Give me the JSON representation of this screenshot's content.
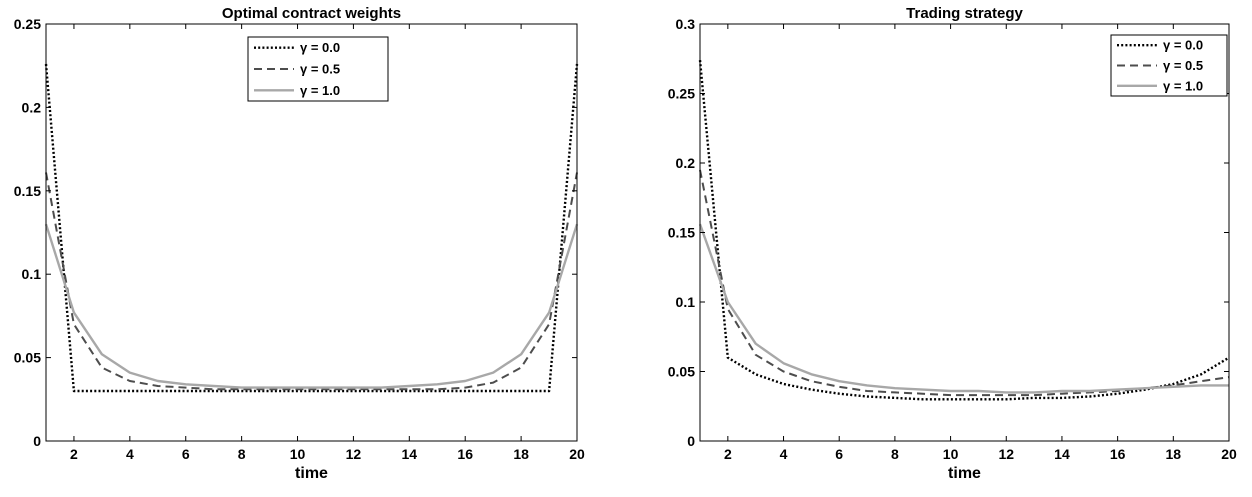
{
  "chart_data": [
    {
      "type": "line",
      "title": "Optimal contract weights",
      "xlabel": "time",
      "ylabel": "",
      "xlim": [
        1,
        20
      ],
      "ylim": [
        0,
        0.25
      ],
      "xticks": [
        2,
        4,
        6,
        8,
        10,
        12,
        14,
        16,
        18,
        20
      ],
      "yticks": [
        0,
        0.05,
        0.1,
        0.15,
        0.2,
        0.25
      ],
      "xtick_labels": [
        "2",
        "4",
        "6",
        "8",
        "10",
        "12",
        "14",
        "16",
        "18",
        "20"
      ],
      "ytick_labels": [
        "0",
        "0.05",
        "0.1",
        "0.15",
        "0.2",
        "0.25"
      ],
      "legend_position": "top-center",
      "grid": false,
      "x": [
        1,
        2,
        3,
        4,
        5,
        6,
        7,
        8,
        9,
        10,
        11,
        12,
        13,
        14,
        15,
        16,
        17,
        18,
        19,
        20
      ],
      "series": [
        {
          "name": "γ = 0.0",
          "style": "dotted",
          "color": "#000000",
          "values": [
            0.226,
            0.03,
            0.03,
            0.03,
            0.03,
            0.03,
            0.03,
            0.03,
            0.03,
            0.03,
            0.03,
            0.03,
            0.03,
            0.03,
            0.03,
            0.03,
            0.03,
            0.03,
            0.03,
            0.226
          ]
        },
        {
          "name": "γ = 0.5",
          "style": "dashed",
          "color": "#4d4d4d",
          "values": [
            0.161,
            0.07,
            0.044,
            0.036,
            0.033,
            0.032,
            0.031,
            0.031,
            0.031,
            0.031,
            0.031,
            0.031,
            0.031,
            0.031,
            0.031,
            0.032,
            0.035,
            0.044,
            0.07,
            0.161
          ]
        },
        {
          "name": "γ = 1.0",
          "style": "solid",
          "color": "#a8a8a8",
          "values": [
            0.13,
            0.077,
            0.052,
            0.041,
            0.036,
            0.034,
            0.033,
            0.032,
            0.032,
            0.032,
            0.032,
            0.032,
            0.032,
            0.033,
            0.034,
            0.036,
            0.041,
            0.052,
            0.077,
            0.13
          ]
        }
      ]
    },
    {
      "type": "line",
      "title": "Trading strategy",
      "xlabel": "time",
      "ylabel": "",
      "xlim": [
        1,
        20
      ],
      "ylim": [
        0,
        0.3
      ],
      "xticks": [
        2,
        4,
        6,
        8,
        10,
        12,
        14,
        16,
        18,
        20
      ],
      "yticks": [
        0,
        0.05,
        0.1,
        0.15,
        0.2,
        0.25,
        0.3
      ],
      "xtick_labels": [
        "2",
        "4",
        "6",
        "8",
        "10",
        "12",
        "14",
        "16",
        "18",
        "20"
      ],
      "ytick_labels": [
        "0",
        "0.05",
        "0.1",
        "0.15",
        "0.2",
        "0.25",
        "0.3"
      ],
      "legend_position": "top-right",
      "grid": false,
      "x": [
        1,
        2,
        3,
        4,
        5,
        6,
        7,
        8,
        9,
        10,
        11,
        12,
        13,
        14,
        15,
        16,
        17,
        18,
        19,
        20
      ],
      "series": [
        {
          "name": "γ = 0.0",
          "style": "dotted",
          "color": "#000000",
          "values": [
            0.274,
            0.06,
            0.048,
            0.041,
            0.037,
            0.034,
            0.032,
            0.031,
            0.03,
            0.03,
            0.03,
            0.03,
            0.031,
            0.031,
            0.032,
            0.034,
            0.037,
            0.041,
            0.048,
            0.06
          ]
        },
        {
          "name": "γ = 0.5",
          "style": "dashed",
          "color": "#4d4d4d",
          "values": [
            0.195,
            0.095,
            0.062,
            0.05,
            0.043,
            0.039,
            0.036,
            0.035,
            0.034,
            0.033,
            0.033,
            0.033,
            0.033,
            0.034,
            0.035,
            0.036,
            0.038,
            0.04,
            0.043,
            0.046
          ]
        },
        {
          "name": "γ = 1.0",
          "style": "solid",
          "color": "#a8a8a8",
          "values": [
            0.156,
            0.1,
            0.07,
            0.056,
            0.048,
            0.043,
            0.04,
            0.038,
            0.037,
            0.036,
            0.036,
            0.035,
            0.035,
            0.036,
            0.036,
            0.037,
            0.038,
            0.039,
            0.04,
            0.04
          ]
        }
      ]
    }
  ]
}
